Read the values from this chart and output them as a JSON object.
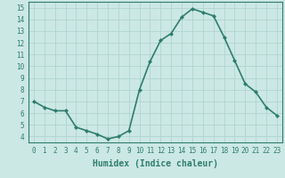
{
  "x": [
    0,
    1,
    2,
    3,
    4,
    5,
    6,
    7,
    8,
    9,
    10,
    11,
    12,
    13,
    14,
    15,
    16,
    17,
    18,
    19,
    20,
    21,
    22,
    23
  ],
  "y": [
    7.0,
    6.5,
    6.2,
    6.2,
    4.8,
    4.5,
    4.2,
    3.8,
    4.0,
    4.5,
    8.0,
    10.4,
    12.2,
    12.8,
    14.2,
    14.9,
    14.6,
    14.3,
    12.5,
    10.5,
    8.5,
    7.8,
    6.5,
    5.8
  ],
  "line_color": "#2e7d6e",
  "marker": "D",
  "marker_size": 2.0,
  "bg_color": "#cce8e4",
  "grid_color": "#b0d4cf",
  "xlabel": "Humidex (Indice chaleur)",
  "xlabel_fontsize": 7,
  "xlim": [
    -0.5,
    23.5
  ],
  "ylim": [
    3.5,
    15.5
  ],
  "yticks": [
    4,
    5,
    6,
    7,
    8,
    9,
    10,
    11,
    12,
    13,
    14,
    15
  ],
  "xticks": [
    0,
    1,
    2,
    3,
    4,
    5,
    6,
    7,
    8,
    9,
    10,
    11,
    12,
    13,
    14,
    15,
    16,
    17,
    18,
    19,
    20,
    21,
    22,
    23
  ],
  "tick_fontsize": 5.5,
  "line_width": 1.2
}
